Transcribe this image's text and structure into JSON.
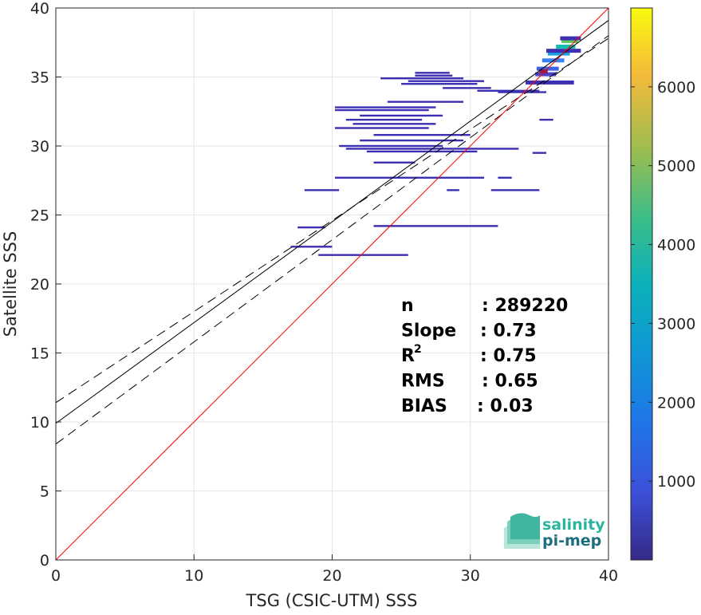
{
  "chart_data": {
    "type": "scatter",
    "subtype": "2D density histogram with regression lines",
    "xlabel": "TSG (CSIC-UTM) SSS",
    "ylabel": "Satellite SSS",
    "xlim": [
      0,
      40
    ],
    "ylim": [
      0,
      40
    ],
    "x_ticks": [
      "0",
      "10",
      "20",
      "30",
      "40"
    ],
    "y_ticks": [
      "0",
      "5",
      "10",
      "15",
      "20",
      "25",
      "30",
      "35",
      "40"
    ],
    "grid": true,
    "colorbar": {
      "range": [
        0,
        7000
      ],
      "ticks": [
        "1000",
        "2000",
        "3000",
        "4000",
        "5000",
        "6000"
      ],
      "colormap": "parula"
    },
    "lines": {
      "identity": {
        "slope": 1,
        "intercept": 0,
        "color": "#ff0000"
      },
      "fit": {
        "slope": 0.73,
        "intercept": 9.9,
        "color": "#000000"
      },
      "fit_upper": {
        "slope": 0.66,
        "intercept": 11.4,
        "style": "dashed"
      },
      "fit_lower": {
        "slope": 0.74,
        "intercept": 8.4,
        "style": "dashed"
      }
    },
    "density_segments": [
      {
        "x1": 26.0,
        "x2": 28.5,
        "y": 35.3,
        "color": "#3d2fb2"
      },
      {
        "x1": 26.0,
        "x2": 28.7,
        "y": 35.1,
        "color": "#3d2fb2"
      },
      {
        "x1": 23.5,
        "x2": 29.5,
        "y": 34.9,
        "color": "#3d2fb2"
      },
      {
        "x1": 25.5,
        "x2": 31.0,
        "y": 34.7,
        "color": "#3d2fb2"
      },
      {
        "x1": 25.0,
        "x2": 30.5,
        "y": 34.5,
        "color": "#3d2fb2"
      },
      {
        "x1": 28.0,
        "x2": 31.5,
        "y": 34.2,
        "color": "#3d2fb2"
      },
      {
        "x1": 30.5,
        "x2": 35.0,
        "y": 34.0,
        "color": "#3d2fb2"
      },
      {
        "x1": 32.0,
        "x2": 35.5,
        "y": 33.9,
        "color": "#3d2fb2"
      },
      {
        "x1": 24.0,
        "x2": 29.5,
        "y": 33.2,
        "color": "#3d2fb2"
      },
      {
        "x1": 20.2,
        "x2": 27.5,
        "y": 32.8,
        "color": "#3d2fb2"
      },
      {
        "x1": 20.2,
        "x2": 27.0,
        "y": 32.6,
        "color": "#3d2fb2"
      },
      {
        "x1": 22.0,
        "x2": 28.0,
        "y": 32.2,
        "color": "#3d2fb2"
      },
      {
        "x1": 21.0,
        "x2": 26.5,
        "y": 31.9,
        "color": "#3d2fb2"
      },
      {
        "x1": 21.5,
        "x2": 27.5,
        "y": 31.6,
        "color": "#3d2fb2"
      },
      {
        "x1": 20.2,
        "x2": 27.0,
        "y": 31.3,
        "color": "#3d2fb2"
      },
      {
        "x1": 35.0,
        "x2": 36.0,
        "y": 31.9,
        "color": "#3d2fb2"
      },
      {
        "x1": 23.0,
        "x2": 30.0,
        "y": 30.8,
        "color": "#3d2fb2"
      },
      {
        "x1": 22.0,
        "x2": 29.5,
        "y": 30.4,
        "color": "#3d2fb2"
      },
      {
        "x1": 20.5,
        "x2": 28.0,
        "y": 30.0,
        "color": "#3d2fb2"
      },
      {
        "x1": 21.0,
        "x2": 33.5,
        "y": 29.8,
        "color": "#3d2fb2"
      },
      {
        "x1": 22.5,
        "x2": 30.5,
        "y": 29.6,
        "color": "#3d2fb2"
      },
      {
        "x1": 34.5,
        "x2": 35.5,
        "y": 29.5,
        "color": "#3d2fb2"
      },
      {
        "x1": 23.0,
        "x2": 26.0,
        "y": 28.8,
        "color": "#3d2fb2"
      },
      {
        "x1": 20.2,
        "x2": 31.0,
        "y": 27.7,
        "color": "#3d2fb2"
      },
      {
        "x1": 32.0,
        "x2": 33.0,
        "y": 27.7,
        "color": "#3d2fb2"
      },
      {
        "x1": 18.0,
        "x2": 20.5,
        "y": 26.8,
        "color": "#3d2fb2"
      },
      {
        "x1": 31.5,
        "x2": 35.0,
        "y": 26.8,
        "color": "#3d2fb2"
      },
      {
        "x1": 28.3,
        "x2": 29.2,
        "y": 26.8,
        "color": "#3d2fb2"
      },
      {
        "x1": 17.5,
        "x2": 19.5,
        "y": 24.1,
        "color": "#3d2fb2"
      },
      {
        "x1": 23.0,
        "x2": 32.0,
        "y": 24.2,
        "color": "#3d2fb2"
      },
      {
        "x1": 17.0,
        "x2": 20.0,
        "y": 22.7,
        "color": "#3d2fb2"
      },
      {
        "x1": 19.0,
        "x2": 25.5,
        "y": 22.1,
        "color": "#3d2fb2"
      }
    ],
    "density_core": [
      {
        "x1": 34.7,
        "x2": 36.2,
        "y": 35.2,
        "color": "#4a42c8"
      },
      {
        "x1": 34.8,
        "x2": 36.4,
        "y": 35.6,
        "color": "#3e63e8"
      },
      {
        "x1": 35.2,
        "x2": 36.8,
        "y": 36.2,
        "color": "#3783f5"
      },
      {
        "x1": 35.6,
        "x2": 37.2,
        "y": 36.7,
        "color": "#1aa2de"
      },
      {
        "x1": 36.2,
        "x2": 37.6,
        "y": 37.2,
        "color": "#12bcb0"
      },
      {
        "x1": 36.6,
        "x2": 37.8,
        "y": 37.6,
        "color": "#60c95e"
      },
      {
        "x1": 35.0,
        "x2": 35.6,
        "y": 35.4,
        "color": "#8b1a5a"
      },
      {
        "x1": 34.0,
        "x2": 37.5,
        "y": 34.6,
        "color": "#3d2fb2"
      },
      {
        "x1": 36.5,
        "x2": 38.0,
        "y": 37.8,
        "color": "#3d2fb2"
      },
      {
        "x1": 35.5,
        "x2": 38.0,
        "y": 36.9,
        "color": "#3d2fb2"
      }
    ],
    "stats": [
      {
        "label": "n",
        "value": ": 289220"
      },
      {
        "label": "Slope",
        "value": ": 0.73"
      },
      {
        "label": "R",
        "sup": "2",
        "value": ": 0.75"
      },
      {
        "label": "RMS",
        "value": ": 0.65"
      },
      {
        "label": "BIAS",
        "value": ": 0.03"
      }
    ]
  },
  "logo": {
    "line1": "salinity",
    "line2": "pi-mep",
    "color1": "#2bb5a0",
    "color2": "#1d6f80"
  }
}
